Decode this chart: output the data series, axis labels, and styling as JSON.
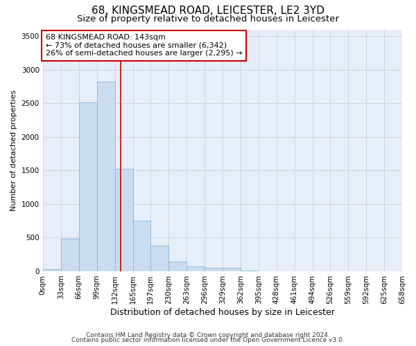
{
  "title_line1": "68, KINGSMEAD ROAD, LEICESTER, LE2 3YD",
  "title_line2": "Size of property relative to detached houses in Leicester",
  "xlabel": "Distribution of detached houses by size in Leicester",
  "ylabel": "Number of detached properties",
  "bar_values": [
    30,
    480,
    2510,
    2820,
    1520,
    750,
    385,
    140,
    70,
    55,
    55,
    5,
    0,
    0,
    0,
    0,
    0,
    0,
    0,
    0
  ],
  "bin_edges": [
    0,
    33,
    66,
    99,
    132,
    165,
    197,
    230,
    263,
    296,
    329,
    362,
    395,
    428,
    461,
    494,
    526,
    559,
    592,
    625,
    658
  ],
  "tick_labels": [
    "0sqm",
    "33sqm",
    "66sqm",
    "99sqm",
    "132sqm",
    "165sqm",
    "197sqm",
    "230sqm",
    "263sqm",
    "296sqm",
    "329sqm",
    "362sqm",
    "395sqm",
    "428sqm",
    "461sqm",
    "494sqm",
    "526sqm",
    "559sqm",
    "592sqm",
    "625sqm",
    "658sqm"
  ],
  "bar_color": "#c9dcf0",
  "bar_edge_color": "#88b4d8",
  "property_line_x": 143,
  "annotation_text": "68 KINGSMEAD ROAD: 143sqm\n← 73% of detached houses are smaller (6,342)\n26% of semi-detached houses are larger (2,295) →",
  "annotation_box_color": "#ffffff",
  "annotation_box_edgecolor": "#cc0000",
  "vline_color": "#cc0000",
  "ylim": [
    0,
    3600
  ],
  "yticks": [
    0,
    500,
    1000,
    1500,
    2000,
    2500,
    3000,
    3500
  ],
  "xlim": [
    0,
    658
  ],
  "grid_color": "#c8d4e8",
  "bg_color": "#e8eef8",
  "footer_line1": "Contains HM Land Registry data © Crown copyright and database right 2024.",
  "footer_line2": "Contains public sector information licensed under the Open Government Licence v3.0.",
  "title1_fontsize": 11,
  "title2_fontsize": 9.5,
  "xlabel_fontsize": 9,
  "ylabel_fontsize": 8,
  "tick_fontsize": 7.5,
  "annotation_fontsize": 8,
  "footer_fontsize": 6.5
}
